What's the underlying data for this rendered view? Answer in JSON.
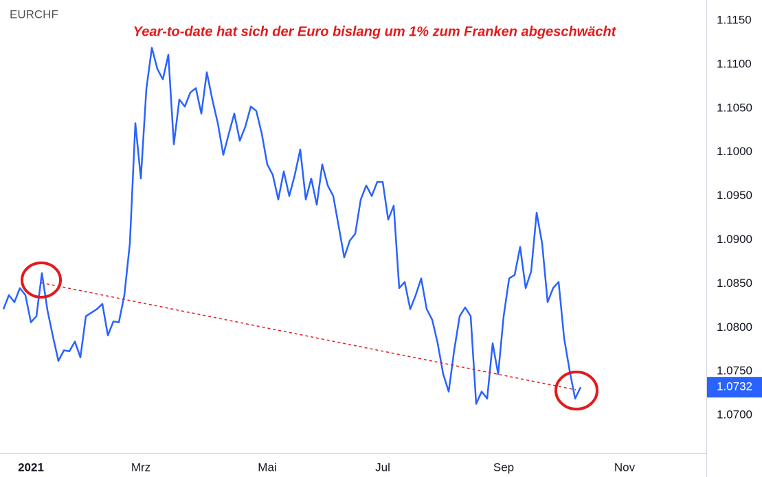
{
  "chart_data": {
    "type": "line",
    "title": "EURCHF",
    "annotation": "Year-to-date hat sich der Euro bislang um 1% zum Franken abgeschwächt",
    "categories": [
      null,
      null,
      null,
      null,
      null,
      "2021",
      null,
      null,
      null,
      null,
      null,
      null,
      null,
      null,
      null,
      null,
      null,
      null,
      null,
      null,
      null,
      null,
      null,
      null,
      null,
      "Mrz",
      null,
      null,
      null,
      null,
      null,
      null,
      null,
      null,
      null,
      null,
      null,
      null,
      null,
      null,
      null,
      null,
      null,
      null,
      null,
      null,
      null,
      null,
      "Mai",
      null,
      null,
      null,
      null,
      null,
      null,
      null,
      null,
      null,
      null,
      null,
      null,
      null,
      null,
      null,
      null,
      null,
      null,
      null,
      null,
      "Jul",
      null,
      null,
      null,
      null,
      null,
      null,
      null,
      null,
      null,
      null,
      null,
      null,
      null,
      null,
      null,
      null,
      null,
      null,
      null,
      null,
      null,
      "Sep",
      null,
      null,
      null,
      null,
      null,
      null,
      null,
      null,
      null,
      null,
      null,
      null,
      null,
      null,
      null,
      null,
      null,
      null,
      null,
      null,
      null,
      "Nov"
    ],
    "series": [
      {
        "name": "EURCHF",
        "color": "#2962ff",
        "values": [
          1.0821,
          1.0837,
          1.0829,
          1.0845,
          1.0837,
          1.0806,
          1.0813,
          1.0862,
          1.082,
          1.079,
          1.0762,
          1.0774,
          1.0773,
          1.0784,
          1.0766,
          1.0813,
          1.0817,
          1.0821,
          1.0827,
          1.0791,
          1.0807,
          1.0806,
          1.0837,
          1.0896,
          1.1033,
          1.097,
          1.1072,
          1.1119,
          1.1095,
          1.1083,
          1.1111,
          1.1009,
          1.106,
          1.1052,
          1.1068,
          1.1073,
          1.1044,
          1.1091,
          1.106,
          1.1033,
          1.0997,
          1.1021,
          1.1044,
          1.1013,
          1.1029,
          1.1052,
          1.1047,
          1.1021,
          1.0986,
          1.0974,
          1.0946,
          1.0978,
          1.095,
          1.0974,
          1.1003,
          1.0946,
          1.097,
          1.094,
          1.0986,
          1.0962,
          1.095,
          1.0915,
          1.088,
          1.0899,
          1.0907,
          1.0946,
          1.0962,
          1.095,
          1.0966,
          1.0966,
          1.0923,
          1.0939,
          1.0845,
          1.0852,
          1.0821,
          1.0837,
          1.0856,
          1.0821,
          1.0809,
          1.0782,
          1.0747,
          1.0727,
          1.0774,
          1.0813,
          1.0823,
          1.0813,
          1.0713,
          1.0727,
          1.0719,
          1.0782,
          1.0747,
          1.0813,
          1.0856,
          1.086,
          1.0892,
          1.0845,
          1.0864,
          1.0931,
          1.0896,
          1.0829,
          1.0845,
          1.0852,
          1.0788,
          1.0751,
          1.0719,
          1.0732,
          null,
          null,
          null,
          null,
          null,
          null,
          null,
          null
        ]
      }
    ],
    "last_price": {
      "value": 1.0732,
      "label": "1.0732"
    },
    "ylim": [
      1.0657,
      1.11735
    ],
    "yticks": [
      {
        "value": 1.07,
        "label": "1.0700"
      },
      {
        "value": 1.075,
        "label": "1.0750"
      },
      {
        "value": 1.08,
        "label": "1.0800"
      },
      {
        "value": 1.085,
        "label": "1.0850"
      },
      {
        "value": 1.09,
        "label": "1.0900"
      },
      {
        "value": 1.095,
        "label": "1.0950"
      },
      {
        "value": 1.1,
        "label": "1.1000"
      },
      {
        "value": 1.105,
        "label": "1.1050"
      },
      {
        "value": 1.11,
        "label": "1.1100"
      },
      {
        "value": 1.115,
        "label": "1.1150"
      }
    ],
    "grid": false
  }
}
